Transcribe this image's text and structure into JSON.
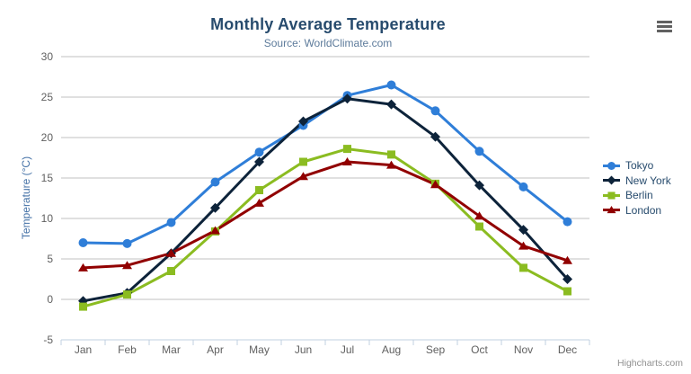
{
  "chart": {
    "title": "Monthly Average Temperature",
    "subtitle": "Source: WorldClimate.com",
    "credits": "Highcharts.com",
    "icons": {
      "context_menu": "hamburger-icon"
    },
    "style": {
      "title_color": "#274b6d",
      "subtitle_color": "#5d7b9b",
      "axis_label_color": "#606060",
      "yaxis_title_color": "#4572a7",
      "grid_color": "#c0c0c0",
      "axis_line_color": "#c0d0e0",
      "legend_text_color": "#274b6d",
      "credits_color": "#909090"
    }
  },
  "chart_data": {
    "type": "line",
    "title": "Monthly Average Temperature",
    "subtitle": "Source: WorldClimate.com",
    "xlabel": "",
    "ylabel": "Temperature (°C)",
    "categories": [
      "Jan",
      "Feb",
      "Mar",
      "Apr",
      "May",
      "Jun",
      "Jul",
      "Aug",
      "Sep",
      "Oct",
      "Nov",
      "Dec"
    ],
    "ylim": [
      -5,
      30
    ],
    "yticks": [
      30,
      25,
      20,
      15,
      10,
      5,
      0,
      -5
    ],
    "grid": true,
    "legend_position": "right",
    "series": [
      {
        "name": "Tokyo",
        "color": "#2f7ed8",
        "marker": "circle",
        "values": [
          7.0,
          6.9,
          9.5,
          14.5,
          18.2,
          21.5,
          25.2,
          26.5,
          23.3,
          18.3,
          13.9,
          9.6
        ]
      },
      {
        "name": "New York",
        "color": "#0d233a",
        "marker": "diamond",
        "values": [
          -0.2,
          0.8,
          5.7,
          11.3,
          17.0,
          22.0,
          24.8,
          24.1,
          20.1,
          14.1,
          8.6,
          2.5
        ]
      },
      {
        "name": "Berlin",
        "color": "#8bbc21",
        "marker": "square",
        "values": [
          -0.9,
          0.6,
          3.5,
          8.4,
          13.5,
          17.0,
          18.6,
          17.9,
          14.3,
          9.0,
          3.9,
          1.0
        ]
      },
      {
        "name": "London",
        "color": "#910000",
        "marker": "triangle",
        "values": [
          3.9,
          4.2,
          5.7,
          8.5,
          11.9,
          15.2,
          17.0,
          16.6,
          14.2,
          10.3,
          6.6,
          4.8
        ]
      }
    ]
  }
}
